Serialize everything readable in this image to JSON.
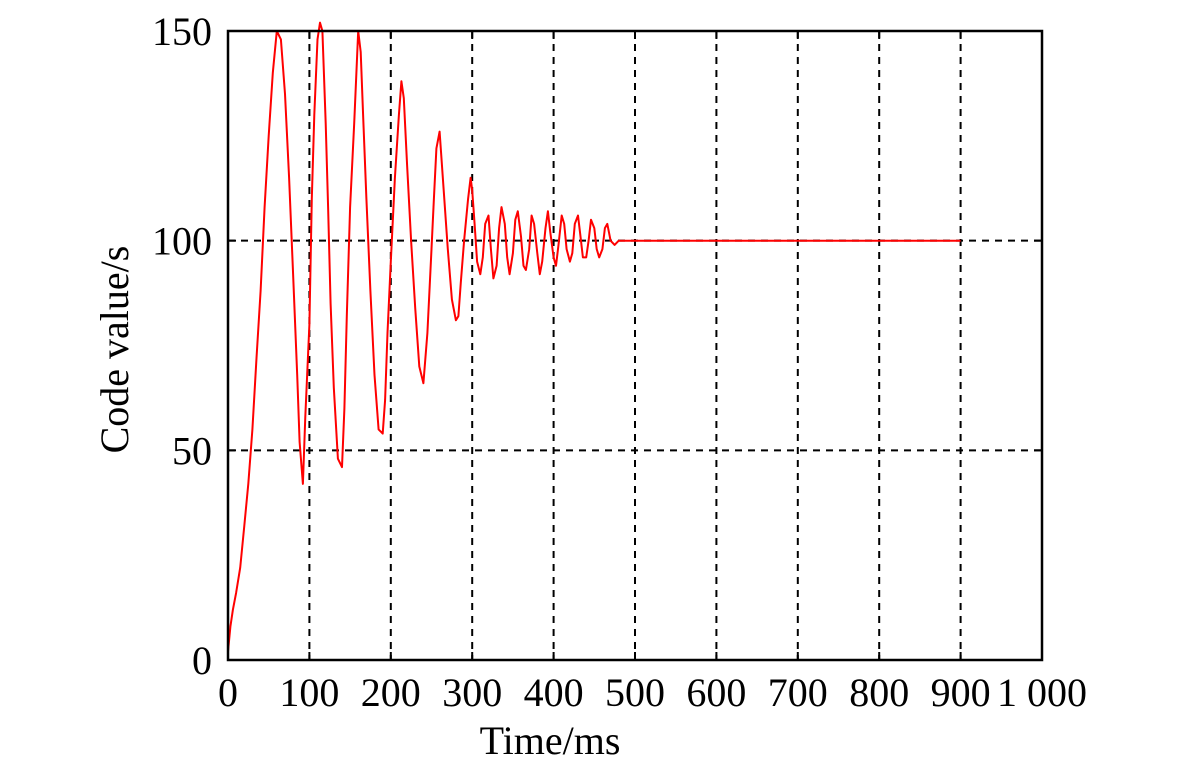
{
  "chart_data": {
    "type": "line",
    "xlabel": "Time/ms",
    "ylabel": "Code value/s",
    "xlim": [
      0,
      1000
    ],
    "ylim": [
      0,
      150
    ],
    "x_ticks": [
      0,
      100,
      200,
      300,
      400,
      500,
      600,
      700,
      800,
      900,
      1000
    ],
    "x_tick_labels": [
      "0",
      "100",
      "200",
      "300",
      "400",
      "500",
      "600",
      "700",
      "800",
      "900",
      "1 000"
    ],
    "y_ticks": [
      0,
      50,
      100,
      150
    ],
    "y_tick_labels": [
      "0",
      "50",
      "100",
      "150"
    ],
    "grid": true,
    "legend": "none",
    "series": [
      {
        "color": "#ff0000",
        "x": [
          0,
          3,
          6,
          10,
          15,
          20,
          25,
          30,
          35,
          40,
          45,
          50,
          55,
          60,
          65,
          70,
          75,
          80,
          85,
          88,
          92,
          95,
          100,
          103,
          106,
          110,
          113,
          116,
          120,
          123,
          126,
          130,
          135,
          140,
          143,
          146,
          150,
          155,
          160,
          163,
          166,
          170,
          175,
          180,
          185,
          190,
          193,
          196,
          200,
          205,
          210,
          213,
          216,
          220,
          225,
          230,
          235,
          240,
          245,
          250,
          253,
          256,
          260,
          265,
          270,
          275,
          280,
          283,
          286,
          290,
          295,
          298,
          300,
          303,
          306,
          310,
          313,
          316,
          320,
          323,
          326,
          330,
          333,
          336,
          340,
          343,
          346,
          350,
          353,
          356,
          360,
          363,
          366,
          370,
          373,
          376,
          380,
          383,
          386,
          390,
          393,
          396,
          400,
          403,
          406,
          410,
          413,
          416,
          420,
          423,
          426,
          430,
          433,
          436,
          440,
          443,
          446,
          450,
          453,
          456,
          460,
          463,
          466,
          470,
          475,
          480,
          490,
          500,
          600,
          700,
          800,
          900
        ],
        "y": [
          2,
          8,
          12,
          16,
          22,
          32,
          42,
          55,
          72,
          88,
          108,
          125,
          140,
          150,
          148,
          135,
          115,
          92,
          68,
          52,
          42,
          58,
          80,
          110,
          130,
          148,
          152,
          150,
          128,
          108,
          85,
          65,
          48,
          46,
          60,
          82,
          108,
          128,
          150,
          145,
          130,
          110,
          88,
          68,
          55,
          54,
          62,
          78,
          95,
          115,
          130,
          138,
          134,
          118,
          100,
          84,
          70,
          66,
          78,
          98,
          110,
          122,
          126,
          112,
          98,
          86,
          81,
          82,
          90,
          100,
          110,
          115,
          112,
          104,
          95,
          92,
          96,
          104,
          106,
          98,
          91,
          94,
          103,
          108,
          104,
          96,
          92,
          97,
          105,
          107,
          101,
          94,
          93,
          98,
          106,
          104,
          97,
          92,
          95,
          103,
          107,
          102,
          96,
          94,
          99,
          106,
          104,
          98,
          95,
          97,
          104,
          106,
          101,
          96,
          96,
          100,
          105,
          103,
          98,
          96,
          98,
          103,
          104,
          100,
          99,
          100,
          100,
          100,
          100,
          100,
          100,
          100
        ]
      }
    ]
  }
}
